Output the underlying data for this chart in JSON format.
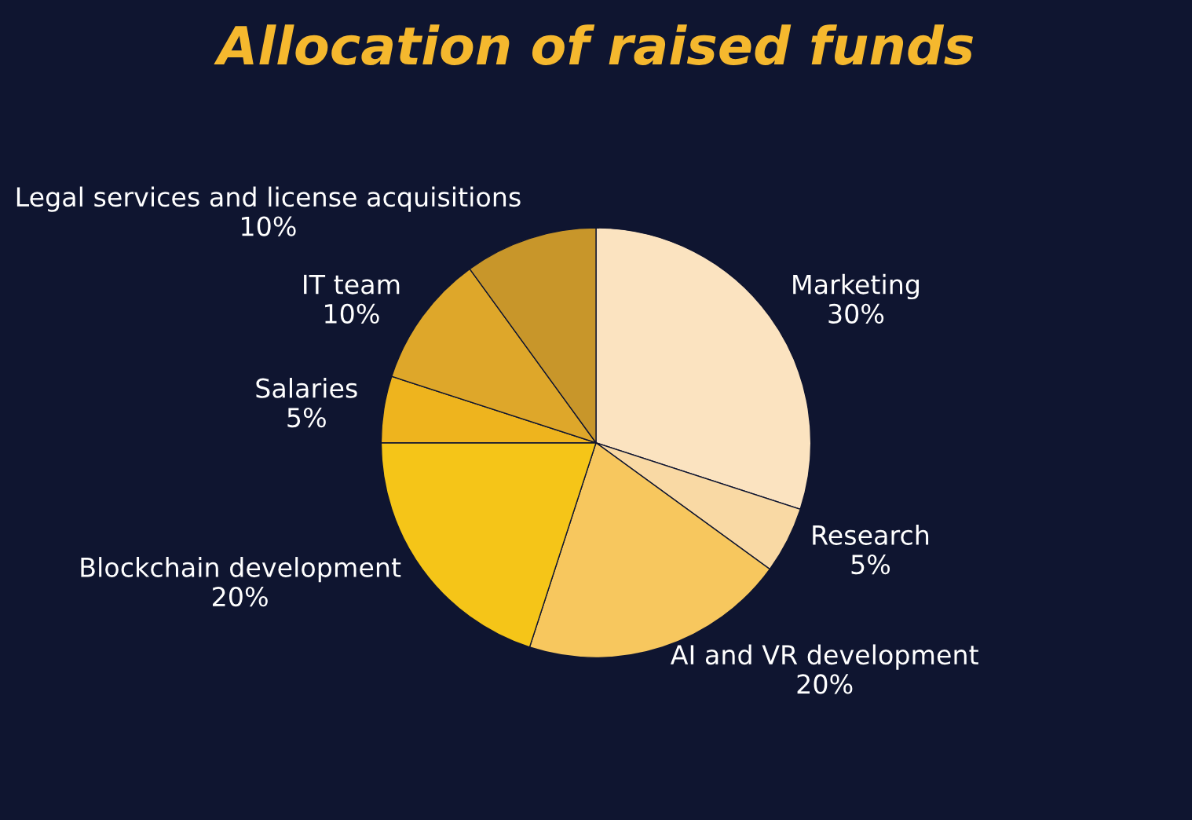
{
  "chart_data": {
    "type": "pie",
    "title": "Allocation of raised funds",
    "categories": [
      "Marketing",
      "Research",
      "AI and VR development",
      "Blockchain development",
      "Salaries",
      "IT team",
      "Legal services and license acquisitions"
    ],
    "values": [
      30,
      5,
      20,
      20,
      5,
      10,
      10
    ],
    "value_labels": [
      "30%",
      "5%",
      "20%",
      "20%",
      "5%",
      "10%",
      "10%"
    ],
    "colors": [
      "#fbe3c0",
      "#f9d9a4",
      "#f7c75e",
      "#f5c518",
      "#eeb41e",
      "#dea72a",
      "#c8962a"
    ],
    "legend": false
  }
}
